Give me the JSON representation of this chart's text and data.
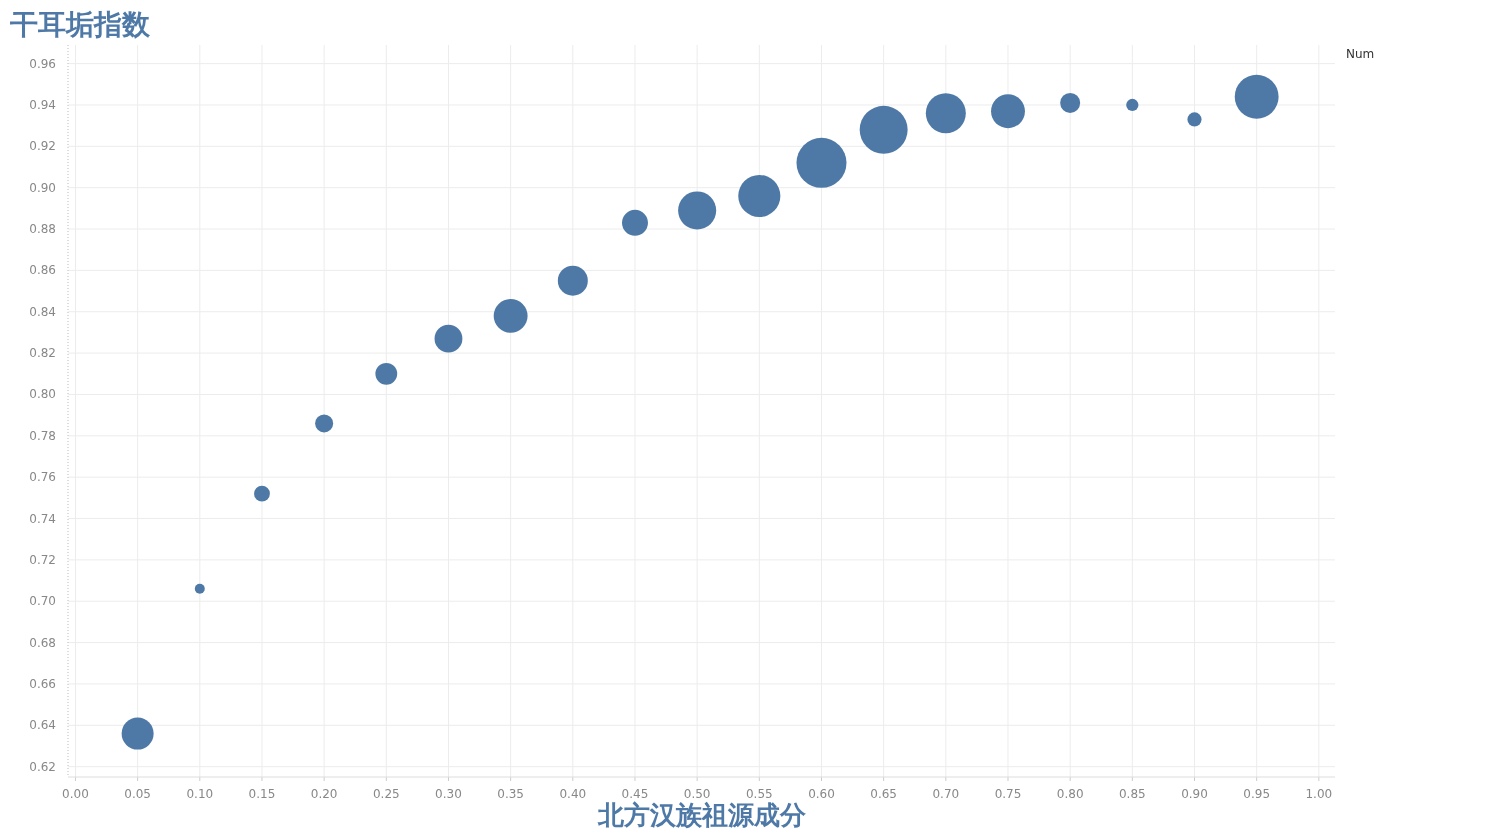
{
  "chart_data": {
    "type": "bubble",
    "title": "干耳垢指数",
    "xlabel": "北方汉族祖源成分",
    "legend_title": "Num",
    "color": "#4e79a7",
    "x": [
      0.05,
      0.1,
      0.15,
      0.2,
      0.25,
      0.3,
      0.35,
      0.4,
      0.45,
      0.5,
      0.55,
      0.6,
      0.65,
      0.7,
      0.75,
      0.8,
      0.85,
      0.9,
      0.95
    ],
    "values": [
      0.636,
      0.706,
      0.752,
      0.786,
      0.81,
      0.827,
      0.838,
      0.855,
      0.883,
      0.889,
      0.896,
      0.912,
      0.928,
      0.936,
      0.937,
      0.941,
      0.94,
      0.933,
      0.944
    ],
    "sizes": [
      0.41,
      0.04,
      0.1,
      0.13,
      0.19,
      0.31,
      0.46,
      0.36,
      0.27,
      0.58,
      0.71,
      1,
      0.92,
      0.64,
      0.46,
      0.16,
      0.06,
      0.08,
      0.77
    ],
    "xlim": [
      -0.006,
      1.013
    ],
    "ylim": [
      0.615,
      0.969
    ],
    "xticks": [
      {
        "value": 0,
        "label": "0.00"
      },
      {
        "value": 0.05,
        "label": "0.05"
      },
      {
        "value": 0.1,
        "label": "0.10"
      },
      {
        "value": 0.15,
        "label": "0.15"
      },
      {
        "value": 0.2,
        "label": "0.20"
      },
      {
        "value": 0.25,
        "label": "0.25"
      },
      {
        "value": 0.3,
        "label": "0.30"
      },
      {
        "value": 0.35,
        "label": "0.35"
      },
      {
        "value": 0.4,
        "label": "0.40"
      },
      {
        "value": 0.45,
        "label": "0.45"
      },
      {
        "value": 0.5,
        "label": "0.50"
      },
      {
        "value": 0.55,
        "label": "0.55"
      },
      {
        "value": 0.6,
        "label": "0.60"
      },
      {
        "value": 0.65,
        "label": "0.65"
      },
      {
        "value": 0.7,
        "label": "0.70"
      },
      {
        "value": 0.75,
        "label": "0.75"
      },
      {
        "value": 0.8,
        "label": "0.80"
      },
      {
        "value": 0.85,
        "label": "0.85"
      },
      {
        "value": 0.9,
        "label": "0.90"
      },
      {
        "value": 0.95,
        "label": "0.95"
      },
      {
        "value": 1,
        "label": "1.00"
      }
    ],
    "yticks": [
      0.62,
      0.64,
      0.66,
      0.68,
      {
        "value": 0.7,
        "label": "0.70"
      },
      0.72,
      0.74,
      0.76,
      0.78,
      {
        "value": 0.8,
        "label": "0.80"
      },
      0.82,
      0.84,
      0.86,
      0.88,
      {
        "value": 0.9,
        "label": "0.90"
      },
      0.92,
      0.94,
      0.96
    ],
    "grid": true
  }
}
